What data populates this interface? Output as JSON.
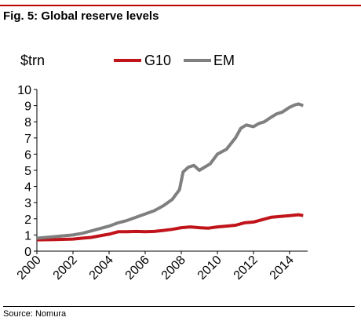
{
  "header": {
    "title": "Fig. 5: Global reserve levels"
  },
  "footer": {
    "source": "Source: Nomura"
  },
  "colors": {
    "accent_rule": "#c00000",
    "G10": "#c0141a",
    "EM": "#7f7f7f"
  },
  "chart_data": {
    "type": "line",
    "title": "Fig. 5: Global reserve levels",
    "ylabel": "$trn",
    "xlabel": "",
    "ylim": [
      0,
      10
    ],
    "xlim": [
      2000,
      2015
    ],
    "yticks": [
      "0",
      "1",
      "2",
      "3",
      "4",
      "5",
      "6",
      "7",
      "8",
      "9",
      "10"
    ],
    "xticks": [
      "2000",
      "2002",
      "2004",
      "2006",
      "2008",
      "2010",
      "2012",
      "2014"
    ],
    "legend_position": "top",
    "grid": false,
    "series": [
      {
        "name": "G10",
        "color": "#c0141a",
        "x": [
          2000.0,
          2001.0,
          2002.0,
          2002.5,
          2003.0,
          2003.5,
          2004.0,
          2004.5,
          2005.0,
          2005.5,
          2006.0,
          2006.5,
          2007.0,
          2007.5,
          2008.0,
          2008.5,
          2009.0,
          2009.5,
          2010.0,
          2010.5,
          2011.0,
          2011.5,
          2012.0,
          2012.5,
          2013.0,
          2013.5,
          2014.0,
          2014.5,
          2014.75
        ],
        "y": [
          0.7,
          0.72,
          0.75,
          0.8,
          0.85,
          0.95,
          1.05,
          1.2,
          1.2,
          1.22,
          1.2,
          1.22,
          1.28,
          1.35,
          1.45,
          1.5,
          1.45,
          1.42,
          1.5,
          1.55,
          1.6,
          1.75,
          1.8,
          1.95,
          2.1,
          2.15,
          2.2,
          2.25,
          2.2
        ]
      },
      {
        "name": "EM",
        "color": "#7f7f7f",
        "x": [
          2000.0,
          2000.5,
          2001.0,
          2001.5,
          2002.0,
          2002.5,
          2003.0,
          2003.5,
          2004.0,
          2004.5,
          2005.0,
          2005.5,
          2006.0,
          2006.5,
          2007.0,
          2007.5,
          2007.9,
          2008.1,
          2008.4,
          2008.7,
          2009.0,
          2009.3,
          2009.6,
          2010.0,
          2010.5,
          2011.0,
          2011.3,
          2011.6,
          2012.0,
          2012.3,
          2012.6,
          2013.0,
          2013.3,
          2013.6,
          2014.0,
          2014.3,
          2014.5,
          2014.75
        ],
        "y": [
          0.8,
          0.85,
          0.9,
          0.95,
          1.0,
          1.1,
          1.25,
          1.4,
          1.55,
          1.75,
          1.9,
          2.1,
          2.3,
          2.5,
          2.8,
          3.2,
          3.8,
          4.9,
          5.2,
          5.3,
          5.0,
          5.2,
          5.4,
          6.0,
          6.3,
          7.0,
          7.6,
          7.8,
          7.7,
          7.9,
          8.0,
          8.3,
          8.5,
          8.6,
          8.9,
          9.05,
          9.1,
          9.0
        ]
      }
    ]
  }
}
